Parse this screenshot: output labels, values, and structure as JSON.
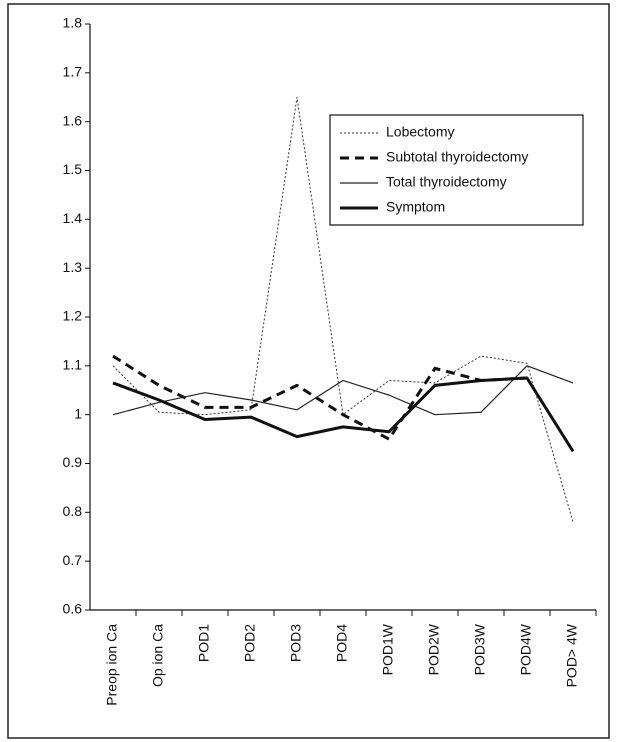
{
  "chart_data": {
    "type": "line",
    "categories": [
      "Preop ion Ca",
      "Op ion Ca",
      "POD1",
      "POD2",
      "POD3",
      "POD4",
      "POD1W",
      "POD2W",
      "POD3W",
      "POD4W",
      "POD> 4W"
    ],
    "series": [
      {
        "name": "Lobectomy",
        "color": "#333333",
        "style": "dotted",
        "width": 1,
        "values": [
          1.1,
          1.005,
          1.0,
          1.01,
          1.65,
          1.0,
          1.07,
          1.065,
          1.12,
          1.105,
          0.78
        ]
      },
      {
        "name": "Subtotal thyroidectomy",
        "color": "#111111",
        "style": "dashed",
        "width": 3,
        "values": [
          1.12,
          1.06,
          1.015,
          1.015,
          1.06,
          1.0,
          0.95,
          1.095,
          1.07,
          1.075,
          null
        ]
      },
      {
        "name": "Total thyroidectomy",
        "color": "#222222",
        "style": "solid",
        "width": 1.2,
        "values": [
          1.0,
          1.025,
          1.045,
          1.03,
          1.01,
          1.07,
          1.04,
          1.0,
          1.005,
          1.1,
          1.065
        ]
      },
      {
        "name": "Symptom",
        "color": "#111111",
        "style": "solid",
        "width": 3,
        "values": [
          1.065,
          1.03,
          0.99,
          0.995,
          0.955,
          0.975,
          0.965,
          1.06,
          1.07,
          1.075,
          0.925
        ]
      }
    ],
    "ylim": [
      0.6,
      1.8
    ],
    "yticks": [
      0.6,
      0.7,
      0.8,
      0.9,
      1,
      1.1,
      1.2,
      1.3,
      1.4,
      1.5,
      1.6,
      1.7,
      1.8
    ],
    "grid": false,
    "legend": "upper right"
  }
}
